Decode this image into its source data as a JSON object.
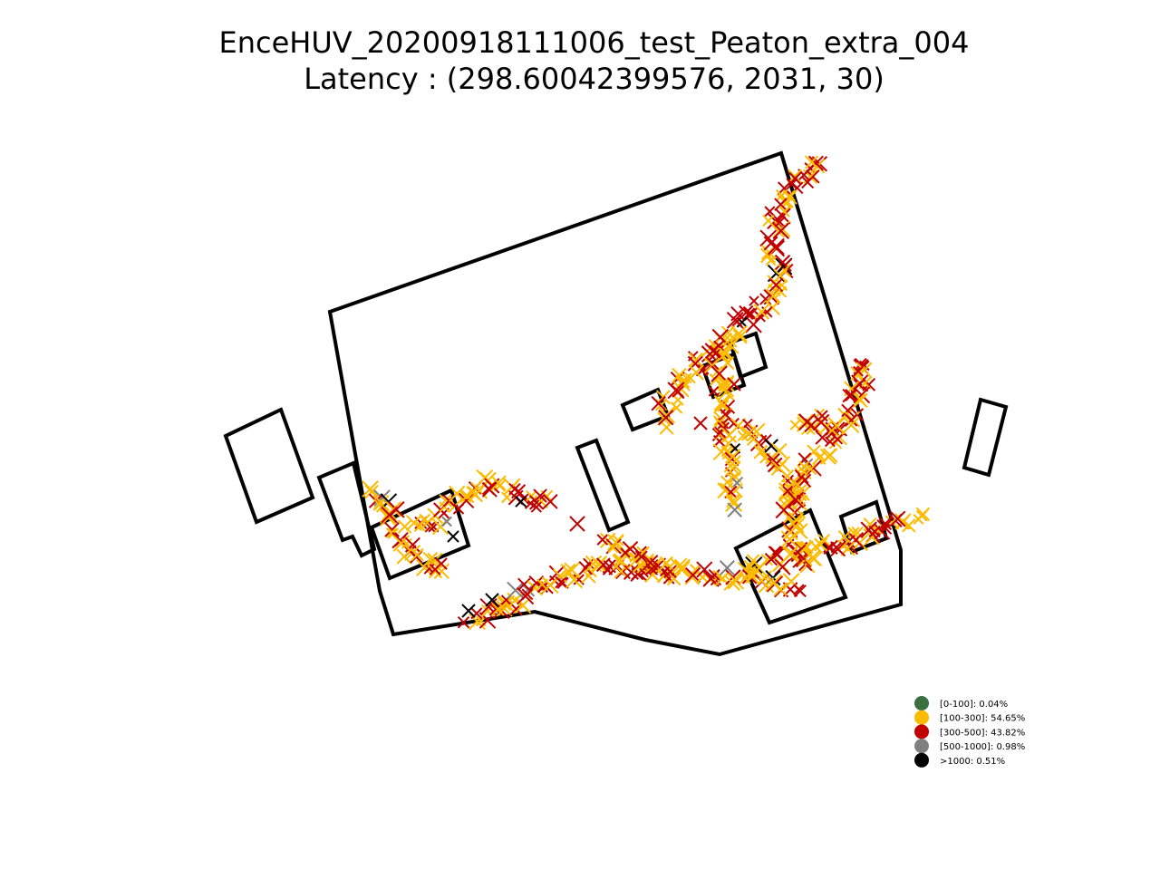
{
  "chart_data": {
    "type": "scatter",
    "title": "EnceHUV_20200918111006_test_Peaton_extra_004",
    "subtitle": "Latency : (298.60042399576, 2031, 30)",
    "marker": "x",
    "axes_visible": false,
    "grid": false,
    "legend_position": "lower-right",
    "series": [
      {
        "name": "[0-100]: 0.04%",
        "label": "[0-100]",
        "percent": 0.04,
        "color": "#3c7040"
      },
      {
        "name": "[100-300]: 54.65%",
        "label": "[100-300]",
        "percent": 54.65,
        "color": "#fcbb00"
      },
      {
        "name": "[300-500]: 43.82%",
        "label": "[300-500]",
        "percent": 43.82,
        "color": "#c00000"
      },
      {
        "name": "[500-1000]: 0.98%",
        "label": "[500-1000]",
        "percent": 0.98,
        "color": "#808080"
      },
      {
        "name": ">1000: 0.51%",
        "label": ">1000",
        "percent": 0.51,
        "color": "#000000"
      }
    ]
  }
}
